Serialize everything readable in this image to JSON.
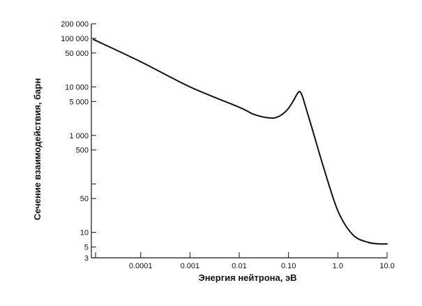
{
  "chart_data": {
    "type": "line",
    "xlabel": "Энергия нейтрона, эВ",
    "ylabel": "Сечение взаимодействия, барн",
    "x_scale": "log",
    "y_scale": "log",
    "xlim": [
      1e-05,
      10.0
    ],
    "ylim": [
      3,
      200000
    ],
    "grid": false,
    "x_ticks": [
      {
        "value": 0.0001,
        "label": "0.0001"
      },
      {
        "value": 0.001,
        "label": "0.001"
      },
      {
        "value": 0.01,
        "label": "0.01"
      },
      {
        "value": 0.1,
        "label": "0.10"
      },
      {
        "value": 1.0,
        "label": "1.0"
      },
      {
        "value": 10.0,
        "label": "10.0"
      }
    ],
    "x_minor_ticks": [
      1e-05
    ],
    "y_ticks": [
      {
        "value": 200000,
        "label": "200 000"
      },
      {
        "value": 100000,
        "label": "100 000"
      },
      {
        "value": 50000,
        "label": "50 000"
      },
      {
        "value": 10000,
        "label": "10 000"
      },
      {
        "value": 5000,
        "label": "5 000"
      },
      {
        "value": 1000,
        "label": "1 000"
      },
      {
        "value": 500,
        "label": "500"
      },
      {
        "value": 50,
        "label": "50"
      },
      {
        "value": 10,
        "label": "10"
      },
      {
        "value": 5,
        "label": "5"
      },
      {
        "value": 3,
        "label": "3"
      }
    ],
    "y_unlabeled_ticks": [
      100
    ],
    "series": [
      {
        "x": [
          1.1e-05,
          0.0001,
          0.001,
          0.01,
          0.02,
          0.04,
          0.06,
          0.09,
          0.12,
          0.15,
          0.17,
          0.19,
          0.22,
          0.3,
          0.5,
          1.0,
          2.0,
          4.0,
          7.0,
          10.0
        ],
        "y": [
          95000,
          33000,
          10000,
          3800,
          2700,
          2300,
          2400,
          3200,
          4800,
          7200,
          8000,
          6500,
          4000,
          1400,
          240,
          28,
          9,
          6.3,
          5.8,
          5.8
        ]
      }
    ]
  }
}
